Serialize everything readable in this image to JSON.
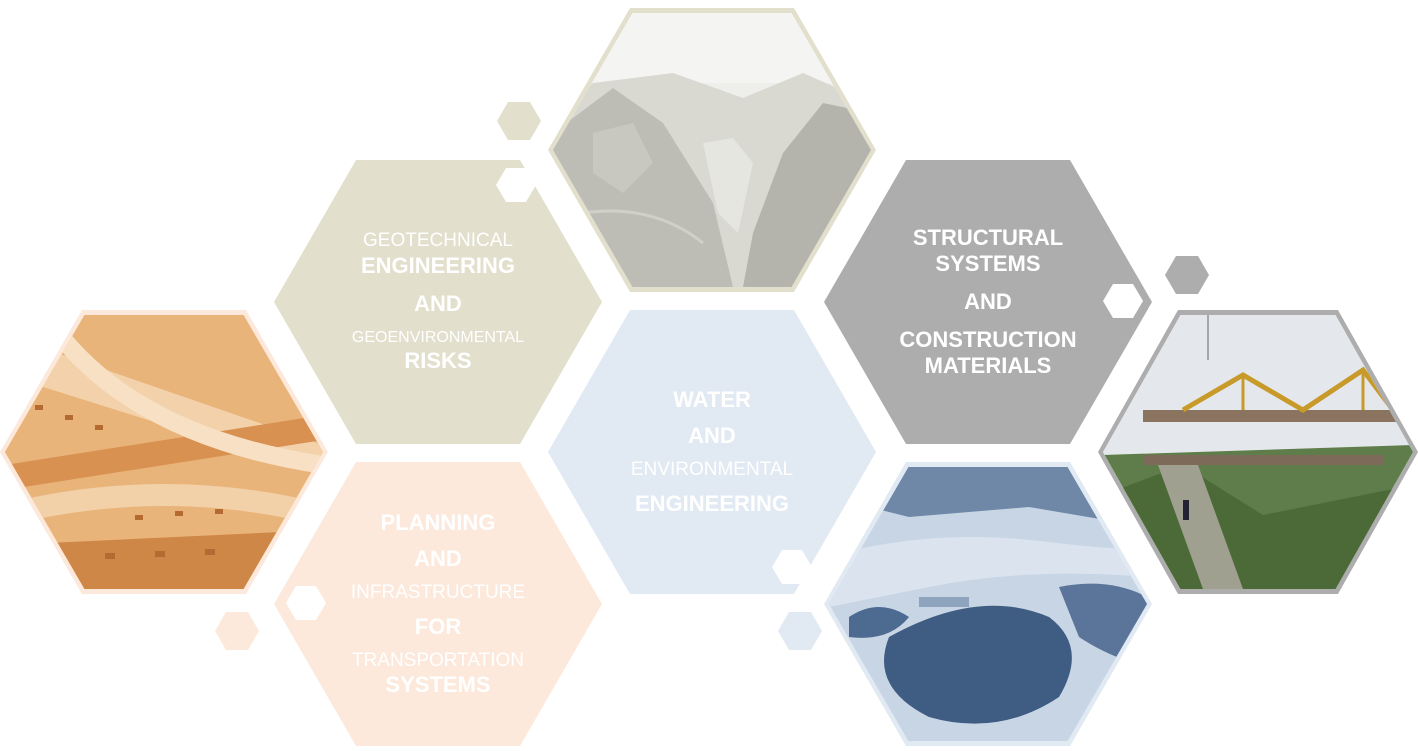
{
  "hexagons": {
    "geotechnical": {
      "line1": "GEOTECHNICAL",
      "line2": "ENGINEERING",
      "line3": "AND",
      "line4": "GEOENVIRONMENTAL",
      "line5": "RISKS",
      "color": "#e2dfcc"
    },
    "structural": {
      "line1": "STRUCTURAL",
      "line2": "SYSTEMS",
      "line3": "AND",
      "line4": "CONSTRUCTION",
      "line5": "MATERIALS",
      "color": "#adadad"
    },
    "water": {
      "line1": "WATER",
      "line2": "AND",
      "line3": "ENVIRONMENTAL",
      "line4": "ENGINEERING",
      "color": "#e1e9f3"
    },
    "planning": {
      "line1": "PLANNING",
      "line2": "AND",
      "line3": "INFRASTRUCTURE",
      "line4": "FOR",
      "line5": "TRANSPORTATION",
      "line6": "SYSTEMS",
      "color": "#fde9dc"
    }
  },
  "photos": {
    "valley": {
      "icon": "valley-photo",
      "tint": "#dcdcd4",
      "frame": "#e2dfcc"
    },
    "highway": {
      "icon": "highway-photo",
      "tint": "#e1a668",
      "frame": "#fde9dc"
    },
    "reservoir": {
      "icon": "reservoir-photo",
      "tint": "#9fb4cf",
      "frame": "#e1e9f3"
    },
    "bridge": {
      "icon": "bridge-construction-photo",
      "tint": "#6f8a55",
      "frame": "#adadad"
    }
  }
}
